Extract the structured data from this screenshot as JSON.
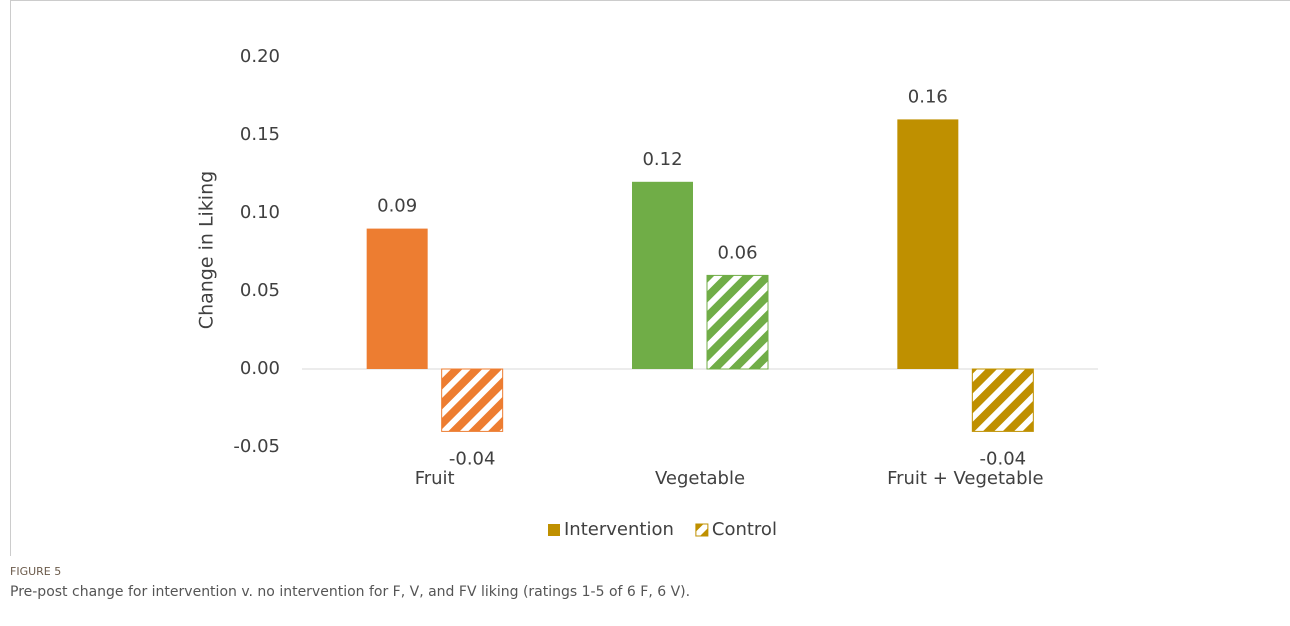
{
  "chart_data": {
    "type": "bar",
    "y_label": "Change in Liking",
    "categories": [
      "Fruit",
      "Vegetable",
      "Fruit + Vegetable"
    ],
    "series": [
      {
        "name": "Intervention",
        "color": "#bf9000",
        "colors": [
          "#ed7d31",
          "#70ad47",
          "#bf9000"
        ],
        "values": [
          0.09,
          0.12,
          0.16
        ]
      },
      {
        "name": "Control",
        "color": "#bf9000",
        "colors": [
          "#ed7d31",
          "#70ad47",
          "#bf9000"
        ],
        "hatched": true,
        "values": [
          -0.04,
          0.06,
          -0.04
        ]
      }
    ],
    "ylim": [
      -0.05,
      0.2
    ],
    "yticks": [
      {
        "value": -0.05,
        "label": "-0.05"
      },
      {
        "value": 0,
        "label": "0.00"
      },
      {
        "value": 0.05,
        "label": "0.05"
      },
      {
        "value": 0.1,
        "label": "0.10"
      },
      {
        "value": 0.15,
        "label": "0.15"
      },
      {
        "value": 0.2,
        "label": "0.20"
      }
    ],
    "legend": "bottom"
  },
  "caption": {
    "label": "FIGURE 5",
    "text": "Pre-post change for intervention v. no intervention for F, V, and FV liking (ratings 1-5 of 6 F, 6 V)."
  }
}
